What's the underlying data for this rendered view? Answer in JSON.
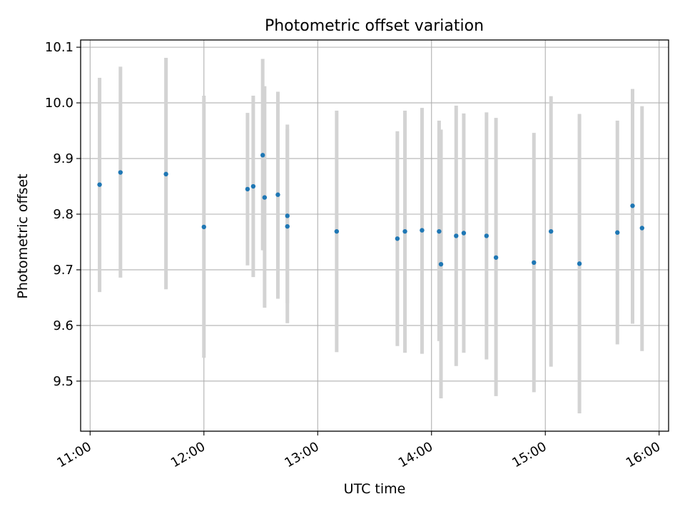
{
  "chart_data": {
    "type": "scatter",
    "title": "Photometric offset variation",
    "xlabel": "UTC time",
    "ylabel": "Photometric offset",
    "grid": true,
    "legend": "none",
    "x_range": [
      "10:55",
      "16:05"
    ],
    "ylim": [
      9.41,
      10.113
    ],
    "x_ticks": [
      "11:00",
      "12:00",
      "13:00",
      "14:00",
      "15:00",
      "16:00"
    ],
    "y_ticks": [
      9.5,
      9.6,
      9.7,
      9.8,
      9.9,
      10.0,
      10.1
    ],
    "series": [
      {
        "marker_color": "#1f77b4",
        "errorbar_color": "#d3d3d3",
        "points": [
          {
            "x": "11:05",
            "y": 9.853,
            "low": 9.66,
            "high": 10.045
          },
          {
            "x": "11:16",
            "y": 9.875,
            "low": 9.686,
            "high": 10.065
          },
          {
            "x": "11:40",
            "y": 9.872,
            "low": 9.665,
            "high": 10.081
          },
          {
            "x": "12:00",
            "y": 9.777,
            "low": 9.542,
            "high": 10.013
          },
          {
            "x": "12:23",
            "y": 9.845,
            "low": 9.708,
            "high": 9.982
          },
          {
            "x": "12:26",
            "y": 9.85,
            "low": 9.687,
            "high": 10.013
          },
          {
            "x": "12:31",
            "y": 9.906,
            "low": 9.735,
            "high": 10.079
          },
          {
            "x": "12:32",
            "y": 9.83,
            "low": 9.632,
            "high": 10.03
          },
          {
            "x": "12:39",
            "y": 9.835,
            "low": 9.648,
            "high": 10.02
          },
          {
            "x": "12:44",
            "y": 9.797,
            "low": 9.64,
            "high": 9.953
          },
          {
            "x": "12:44",
            "y": 9.778,
            "low": 9.604,
            "high": 9.961
          },
          {
            "x": "13:10",
            "y": 9.769,
            "low": 9.552,
            "high": 9.986
          },
          {
            "x": "13:42",
            "y": 9.756,
            "low": 9.563,
            "high": 9.949
          },
          {
            "x": "13:46",
            "y": 9.769,
            "low": 9.551,
            "high": 9.986
          },
          {
            "x": "13:55",
            "y": 9.771,
            "low": 9.549,
            "high": 9.991
          },
          {
            "x": "14:04",
            "y": 9.769,
            "low": 9.572,
            "high": 9.968
          },
          {
            "x": "14:05",
            "y": 9.71,
            "low": 9.469,
            "high": 9.952
          },
          {
            "x": "14:13",
            "y": 9.761,
            "low": 9.527,
            "high": 9.995
          },
          {
            "x": "14:17",
            "y": 9.766,
            "low": 9.551,
            "high": 9.981
          },
          {
            "x": "14:29",
            "y": 9.761,
            "low": 9.539,
            "high": 9.983
          },
          {
            "x": "14:34",
            "y": 9.722,
            "low": 9.473,
            "high": 9.973
          },
          {
            "x": "14:54",
            "y": 9.713,
            "low": 9.48,
            "high": 9.946
          },
          {
            "x": "15:03",
            "y": 9.769,
            "low": 9.526,
            "high": 10.012
          },
          {
            "x": "15:18",
            "y": 9.711,
            "low": 9.442,
            "high": 9.98
          },
          {
            "x": "15:38",
            "y": 9.767,
            "low": 9.566,
            "high": 9.968
          },
          {
            "x": "15:46",
            "y": 9.815,
            "low": 9.603,
            "high": 10.025
          },
          {
            "x": "15:51",
            "y": 9.775,
            "low": 9.554,
            "high": 9.994
          }
        ]
      }
    ]
  }
}
